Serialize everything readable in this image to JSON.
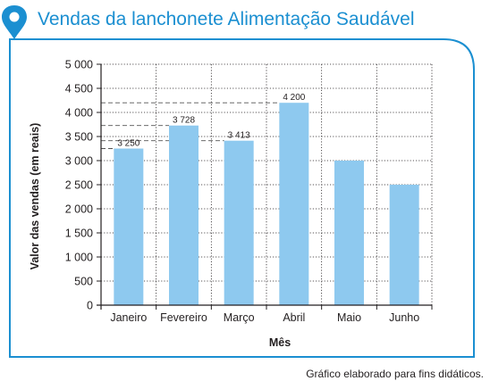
{
  "colors": {
    "accent": "#1b8fd1",
    "bar": "#8ec9ef",
    "grid": "#231f20",
    "text": "#231f20"
  },
  "source_note": "Gráfico elaborado para fins didáticos.",
  "chart_data": {
    "type": "bar",
    "title": "Vendas da lanchonete Alimentação Saudável",
    "xlabel": "Mês",
    "ylabel": "Valor das vendas (em reais)",
    "categories": [
      "Janeiro",
      "Fevereiro",
      "Março",
      "Abril",
      "Maio",
      "Junho"
    ],
    "values": [
      3250,
      3728,
      3413,
      4200,
      3000,
      2500
    ],
    "data_labels": [
      "3 250",
      "3 728",
      "3 413",
      "4 200",
      "",
      ""
    ],
    "yticks": [
      "0",
      "500",
      "1 000",
      "1 500",
      "2 000",
      "2 500",
      "3 000",
      "3 500",
      "4 000",
      "4 500",
      "5 000"
    ],
    "ylim": [
      0,
      5000
    ],
    "grid": true,
    "reference_lines": [
      3250,
      3413,
      3728,
      4200
    ]
  }
}
